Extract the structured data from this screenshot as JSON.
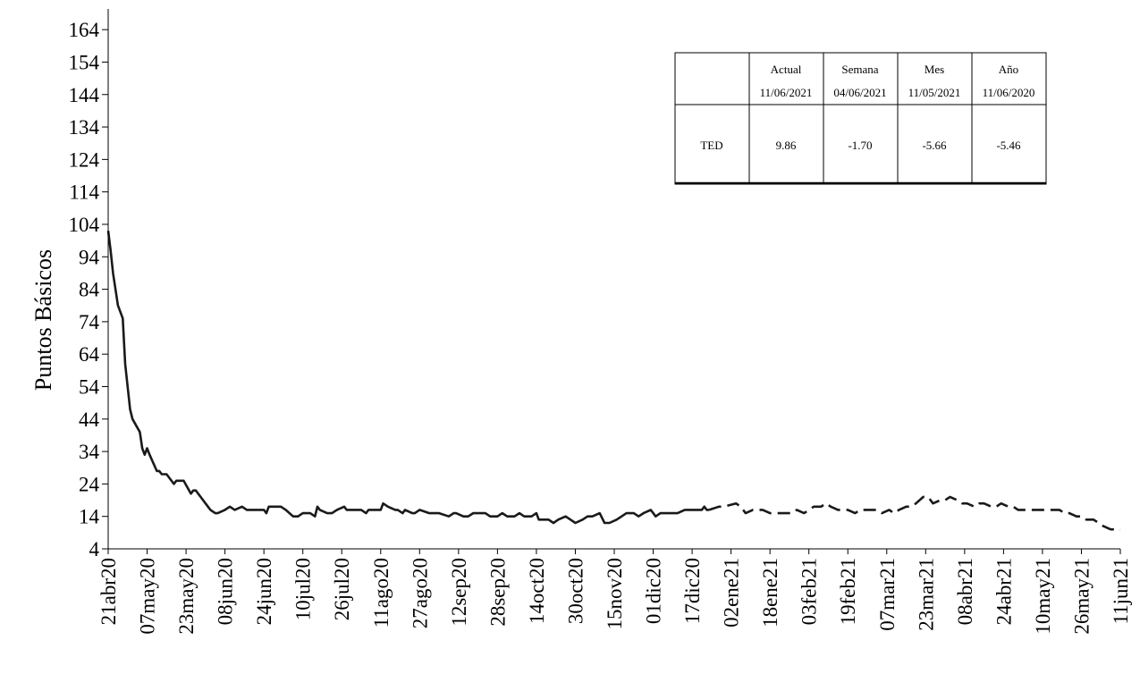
{
  "chart_data": {
    "type": "line",
    "title": "",
    "xlabel": "",
    "ylabel": "Puntos Básicos",
    "ylim": [
      4,
      169
    ],
    "yticks": [
      4,
      14,
      24,
      34,
      44,
      54,
      64,
      74,
      84,
      94,
      104,
      114,
      124,
      134,
      144,
      154,
      164
    ],
    "grid": false,
    "x_tick_labels": [
      "21abr20",
      "07may20",
      "23may20",
      "08jun20",
      "24jun20",
      "10jul20",
      "26jul20",
      "11ago20",
      "27ago20",
      "12sep20",
      "28sep20",
      "14oct20",
      "30oct20",
      "15nov20",
      "01dic20",
      "17dic20",
      "02ene21",
      "18ene21",
      "03feb21",
      "19feb21",
      "07mar21",
      "23mar21",
      "08abr21",
      "24abr21",
      "10may21",
      "26may21",
      "11jun21"
    ],
    "series": [
      {
        "style": "solid",
        "x": [
          "21abr20",
          "22abr20",
          "23abr20",
          "25abr20",
          "27abr20",
          "28abr20",
          "30abr20",
          "01may20",
          "04may20",
          "05may20",
          "06may20",
          "07may20",
          "08may20",
          "11may20",
          "12may20",
          "13may20",
          "15may20",
          "18may20",
          "19may20",
          "20may20",
          "21may20",
          "22may20",
          "25may20",
          "26may20",
          "27may20",
          "28may20",
          "29may20",
          "01jun20",
          "02jun20",
          "04jun20",
          "05jun20",
          "08jun20",
          "10jun20",
          "12jun20",
          "15jun20",
          "17jun20",
          "19jun20",
          "22jun20",
          "24jun20",
          "25jun20",
          "26jun20",
          "29jun20",
          "01jul20",
          "03jul20",
          "06jul20",
          "07jul20",
          "08jul20",
          "10jul20",
          "13jul20",
          "15jul20",
          "16jul20",
          "17jul20",
          "20jul20",
          "22jul20",
          "24jul20",
          "27jul20",
          "28jul20",
          "29jul20",
          "31jul20",
          "03ago20",
          "05ago20",
          "06ago20",
          "07ago20",
          "10ago20",
          "11ago20",
          "12ago20",
          "14ago20",
          "17ago20",
          "18ago20",
          "20ago20",
          "21ago20",
          "24ago20",
          "25ago20",
          "27ago20",
          "31ago20",
          "04sep20",
          "08sep20",
          "10sep20",
          "11sep20",
          "14sep20",
          "16sep20",
          "18sep20",
          "21sep20",
          "23sep20",
          "25sep20",
          "28sep20",
          "30sep20",
          "02oct20",
          "05oct20",
          "07oct20",
          "09oct20",
          "12oct20",
          "14oct20",
          "15oct20",
          "19oct20",
          "21oct20",
          "23oct20",
          "26oct20",
          "28oct20",
          "30oct20",
          "02nov20",
          "04nov20",
          "06nov20",
          "09nov20",
          "11nov20",
          "13nov20",
          "16nov20",
          "18nov20",
          "20nov20",
          "23nov20",
          "25nov20",
          "27nov20",
          "30nov20",
          "02dic20",
          "04dic20",
          "07dic20",
          "09dic20",
          "11dic20",
          "14dic20",
          "16dic20",
          "18dic20",
          "21dic20",
          "22dic20",
          "23dic20",
          "24dic20"
        ],
        "values": [
          102,
          96,
          89,
          79,
          75,
          61,
          47,
          44,
          40,
          35,
          33,
          35,
          33,
          28,
          28,
          27,
          27,
          24,
          25,
          25,
          25,
          25,
          21,
          22,
          22,
          21,
          20,
          17,
          16,
          15,
          15,
          16,
          17,
          16,
          17,
          16,
          16,
          16,
          16,
          15,
          17,
          17,
          17,
          16,
          14,
          14,
          14,
          15,
          15,
          14,
          17,
          16,
          15,
          15,
          16,
          17,
          16,
          16,
          16,
          16,
          15,
          16,
          16,
          16,
          16,
          18,
          17,
          16,
          16,
          15,
          16,
          15,
          15,
          16,
          15,
          15,
          14,
          15,
          15,
          14,
          14,
          15,
          15,
          15,
          14,
          14,
          15,
          14,
          14,
          15,
          14,
          14,
          15,
          13,
          13,
          12,
          13,
          14,
          13,
          12,
          13,
          14,
          14,
          15,
          12,
          12,
          13,
          14,
          15,
          15,
          14,
          15,
          16,
          14,
          15,
          15,
          15,
          15,
          16,
          16,
          16,
          16,
          17,
          16,
          16
        ],
        "line_color": "#1a1a1a"
      },
      {
        "style": "dashed",
        "x": [
          "24dic20",
          "28dic20",
          "30dic20",
          "04ene21",
          "06ene21",
          "08ene21",
          "11ene21",
          "13ene21",
          "15ene21",
          "18ene21",
          "20ene21",
          "22ene21",
          "25ene21",
          "27ene21",
          "29ene21",
          "01feb21",
          "03feb21",
          "05feb21",
          "08feb21",
          "10feb21",
          "12feb21",
          "15feb21",
          "17feb21",
          "19feb21",
          "22feb21",
          "24feb21",
          "26feb21",
          "01mar21",
          "03mar21",
          "05mar21",
          "08mar21",
          "10mar21",
          "12mar21",
          "15mar21",
          "17mar21",
          "19mar21",
          "22mar21",
          "24mar21",
          "26mar21",
          "29mar21",
          "31mar21",
          "02abr21",
          "05abr21",
          "07abr21",
          "09abr21",
          "12abr21",
          "14abr21",
          "16abr21",
          "19abr21",
          "21abr21",
          "23abr21",
          "26abr21",
          "28abr21",
          "30abr21",
          "03may21",
          "05may21",
          "07may21",
          "10may21",
          "12may21",
          "14may21",
          "17may21",
          "19may21",
          "21may21",
          "24may21",
          "26may21",
          "28may21",
          "31may21",
          "02jun21",
          "04jun21",
          "07jun21",
          "09jun21",
          "11jun21"
        ],
        "values": [
          16,
          17,
          17,
          18,
          17,
          15,
          16,
          16,
          16,
          15,
          15,
          15,
          15,
          15,
          16,
          15,
          16,
          17,
          17,
          18,
          17,
          16,
          16,
          16,
          15,
          16,
          16,
          16,
          16,
          15,
          16,
          15,
          16,
          17,
          17,
          18,
          20,
          20,
          18,
          19,
          19,
          20,
          19,
          18,
          18,
          17,
          18,
          18,
          17,
          17,
          18,
          17,
          17,
          16,
          16,
          16,
          16,
          16,
          16,
          16,
          16,
          15,
          15,
          14,
          14,
          13,
          13,
          12,
          11,
          10,
          10,
          9.86
        ],
        "line_color": "#1a1a1a"
      }
    ]
  },
  "summary_table": {
    "headers": [
      {
        "label": "Actual",
        "date": "11/06/2021"
      },
      {
        "label": "Semana",
        "date": "04/06/2021"
      },
      {
        "label": "Mes",
        "date": "11/05/2021"
      },
      {
        "label": "Año",
        "date": "11/06/2020"
      }
    ],
    "row_label": "TED",
    "values": [
      "9.86",
      "-1.70",
      "-5.66",
      "-5.46"
    ]
  }
}
